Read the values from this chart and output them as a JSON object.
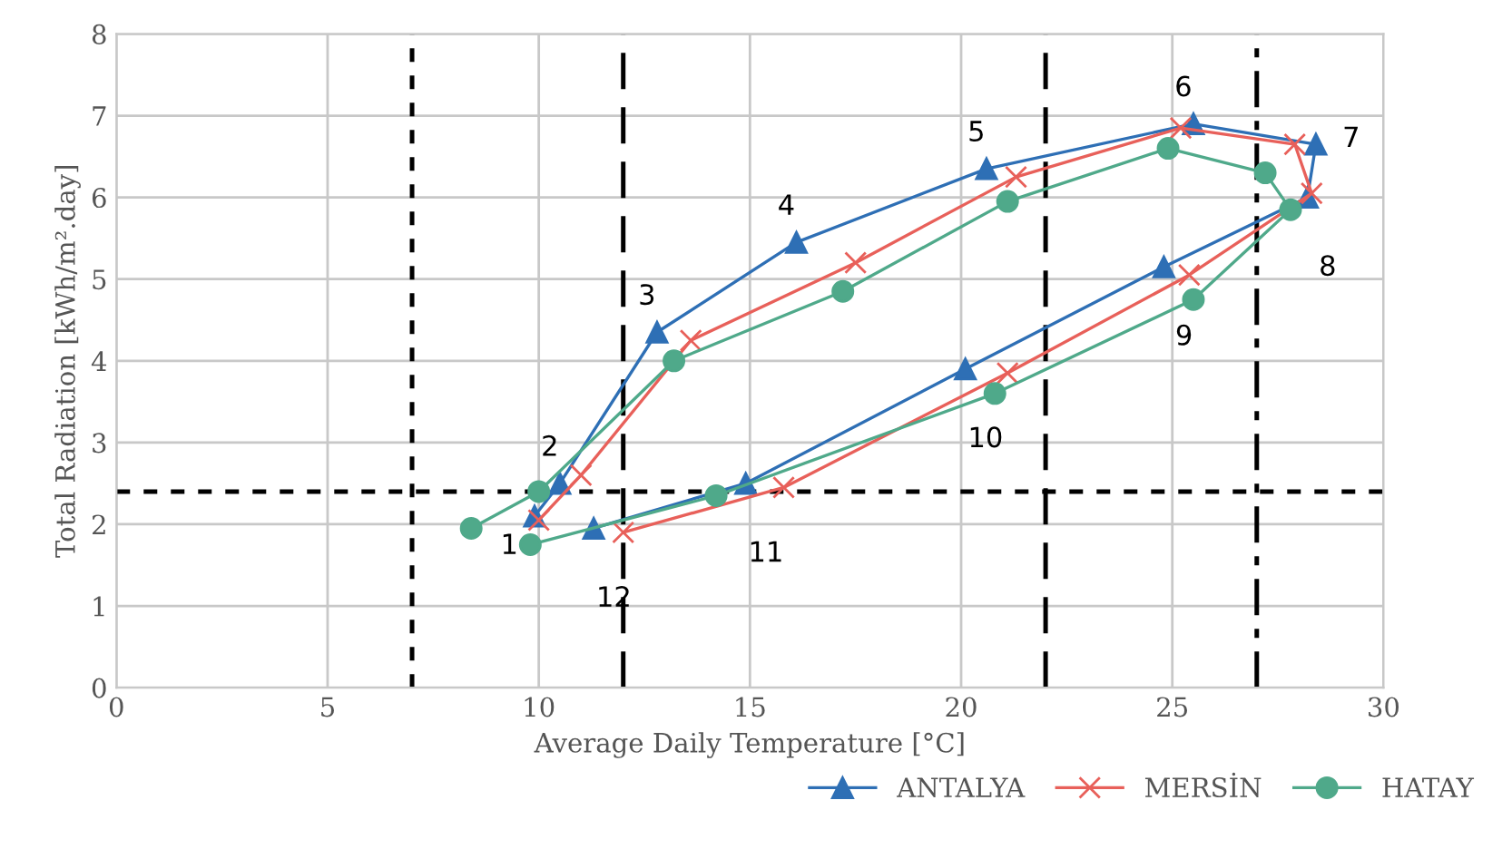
{
  "chart_data": {
    "type": "line",
    "xlabel": "Average Daily Temperature [°C]",
    "ylabel": "Total Radiation [kWh/m².day]",
    "xlim": [
      0,
      30
    ],
    "ylim": [
      0,
      8
    ],
    "xticks": [
      0,
      5,
      10,
      15,
      20,
      25,
      30
    ],
    "yticks": [
      0,
      1,
      2,
      3,
      4,
      5,
      6,
      7,
      8
    ],
    "grid": true,
    "legend": "bottom right",
    "series": [
      {
        "name": "ANTALYA",
        "color": "#2e6fb5",
        "marker": "triangle",
        "x": [
          9.9,
          10.5,
          12.8,
          16.1,
          20.6,
          25.5,
          28.4,
          28.2,
          24.8,
          20.1,
          14.9,
          11.3
        ],
        "values": [
          2.1,
          2.5,
          4.35,
          5.45,
          6.35,
          6.9,
          6.65,
          6.0,
          5.15,
          3.9,
          2.5,
          1.95
        ]
      },
      {
        "name": "MERSİN",
        "color": "#e8605a",
        "marker": "cross",
        "x": [
          10.0,
          11.0,
          13.6,
          17.5,
          21.3,
          25.2,
          27.9,
          28.3,
          25.4,
          21.1,
          15.8,
          12.0
        ],
        "values": [
          2.05,
          2.6,
          4.25,
          5.2,
          6.25,
          6.85,
          6.65,
          6.05,
          5.05,
          3.85,
          2.45,
          1.9
        ]
      },
      {
        "name": "HATAY",
        "color": "#4fa98a",
        "marker": "circle",
        "x": [
          8.4,
          10.0,
          13.2,
          17.2,
          21.1,
          24.9,
          27.2,
          27.8,
          25.5,
          20.8,
          14.2,
          9.8
        ],
        "values": [
          1.95,
          2.4,
          4.0,
          4.85,
          5.95,
          6.6,
          6.3,
          5.85,
          4.75,
          3.6,
          2.35,
          1.75
        ]
      }
    ],
    "ref_lines": [
      {
        "axis": "x",
        "value": 7,
        "line_style": "dotted",
        "color": "#000000"
      },
      {
        "axis": "x",
        "value": 12,
        "line_style": "dashed",
        "color": "#000000"
      },
      {
        "axis": "x",
        "value": 22,
        "line_style": "dashed",
        "color": "#000000"
      },
      {
        "axis": "x",
        "value": 27,
        "line_style": "dashdot",
        "color": "#000000"
      },
      {
        "axis": "y",
        "value": 2.4,
        "line_style": "dotted",
        "color": "#000000"
      }
    ],
    "annotations": [
      {
        "text": "1",
        "x": 9.9,
        "y": 2.1
      },
      {
        "text": "2",
        "x": 10.5,
        "y": 2.5
      },
      {
        "text": "3",
        "x": 12.8,
        "y": 4.35
      },
      {
        "text": "4",
        "x": 16.1,
        "y": 5.45
      },
      {
        "text": "5",
        "x": 20.6,
        "y": 6.35
      },
      {
        "text": "6",
        "x": 25.5,
        "y": 6.9
      },
      {
        "text": "7",
        "x": 28.4,
        "y": 6.65
      },
      {
        "text": "8",
        "x": 28.2,
        "y": 6.0
      },
      {
        "text": "9",
        "x": 24.8,
        "y": 5.15
      },
      {
        "text": "10",
        "x": 20.1,
        "y": 3.9
      },
      {
        "text": "11",
        "x": 14.9,
        "y": 2.5
      },
      {
        "text": "12",
        "x": 11.3,
        "y": 1.95
      }
    ]
  }
}
